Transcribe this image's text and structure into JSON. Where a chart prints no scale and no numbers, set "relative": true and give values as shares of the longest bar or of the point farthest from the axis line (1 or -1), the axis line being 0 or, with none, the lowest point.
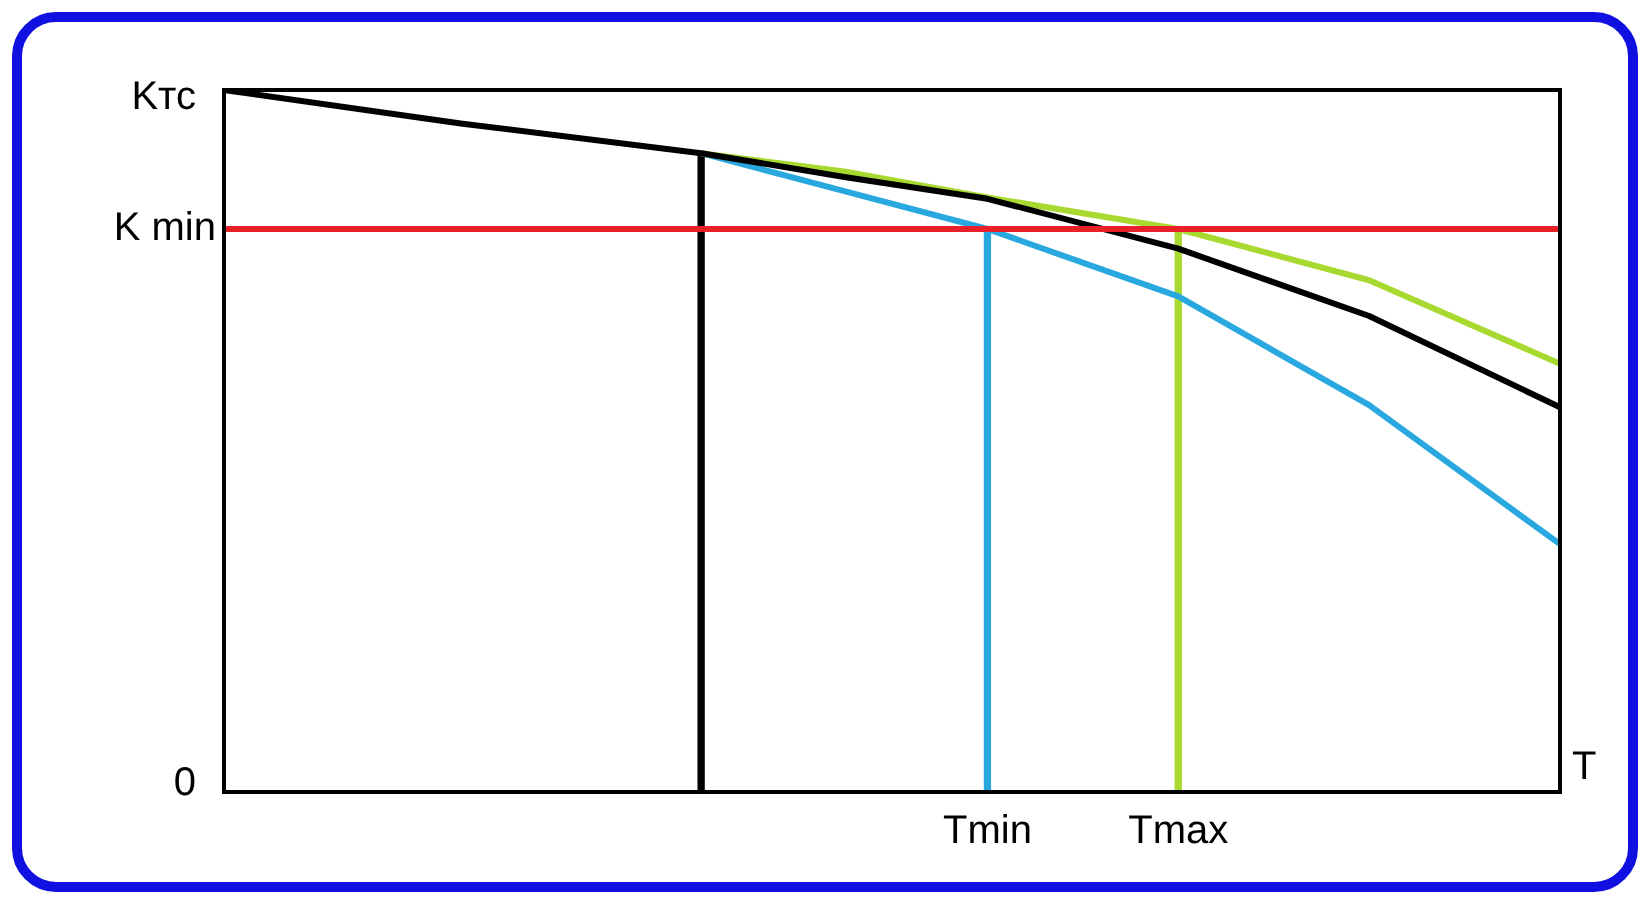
{
  "chart_data": {
    "type": "line",
    "relative": true,
    "ylabel": "Kтс",
    "xlabel": "T",
    "categories": [
      null,
      null,
      null,
      null,
      null,
      null,
      null,
      null,
      null,
      null,
      null,
      null,
      null,
      null,
      null,
      null,
      "Tmin",
      null,
      null,
      null,
      "Tmax",
      null,
      null,
      null,
      null,
      null,
      null,
      null,
      null
    ],
    "series": [
      {
        "color": "#000000",
        "values": [
          1,
          null,
          null,
          null,
          null,
          0.952,
          null,
          null,
          null,
          null,
          0.91,
          null,
          null,
          0.876,
          null,
          null,
          0.845,
          null,
          null,
          null,
          0.774,
          null,
          null,
          null,
          0.678,
          null,
          null,
          null,
          0.548
        ]
      },
      {
        "color": "#a8d930",
        "values": [
          null,
          null,
          null,
          null,
          null,
          null,
          null,
          null,
          null,
          null,
          0.91,
          null,
          null,
          0.884,
          null,
          null,
          0.847,
          null,
          null,
          null,
          0.802,
          null,
          null,
          null,
          0.729,
          null,
          null,
          null,
          0.61
        ]
      },
      {
        "color": "#29a8e0",
        "values": [
          null,
          null,
          null,
          null,
          null,
          null,
          null,
          null,
          null,
          null,
          0.91,
          null,
          null,
          0.856,
          null,
          null,
          0.802,
          null,
          null,
          null,
          0.706,
          null,
          null,
          null,
          0.551,
          null,
          null,
          null,
          0.353
        ]
      },
      {
        "type": "bar",
        "color": "#000000",
        "values": [
          null,
          null,
          null,
          null,
          null,
          null,
          null,
          null,
          null,
          null,
          0.91,
          null,
          null,
          null,
          null,
          null,
          null,
          null,
          null,
          null,
          null,
          null,
          null,
          null,
          null,
          null,
          null,
          null,
          null
        ]
      },
      {
        "type": "bar",
        "color": "#29a8e0",
        "values": [
          null,
          null,
          null,
          null,
          null,
          null,
          null,
          null,
          null,
          null,
          null,
          null,
          null,
          null,
          null,
          null,
          0.802,
          null,
          null,
          null,
          null,
          null,
          null,
          null,
          null,
          null,
          null,
          null,
          null
        ]
      },
      {
        "type": "bar",
        "color": "#a8d930",
        "values": [
          null,
          null,
          null,
          null,
          null,
          null,
          null,
          null,
          null,
          null,
          null,
          null,
          null,
          null,
          null,
          null,
          null,
          null,
          null,
          null,
          0.802,
          null,
          null,
          null,
          null,
          null,
          null,
          null,
          null
        ]
      }
    ],
    "ref_lines": [
      {
        "axis": "y",
        "value": 0.802,
        "label": "K min",
        "color": "#e8202a"
      }
    ],
    "annotations": [
      "0"
    ],
    "grid": false,
    "legend": false,
    "marker": "none",
    "line_style": "solid"
  }
}
